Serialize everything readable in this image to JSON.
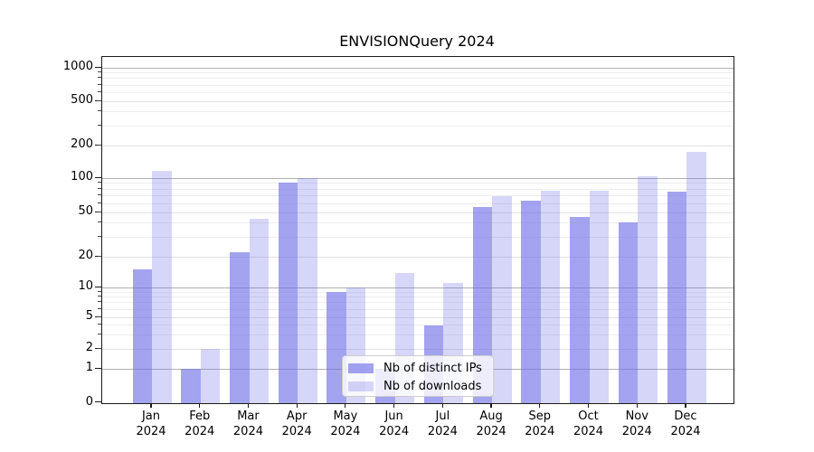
{
  "title": "ENVISIONQuery 2024",
  "year_label": "2024",
  "chart_data": {
    "type": "bar",
    "title": "ENVISIONQuery 2024",
    "categories": [
      "Jan 2024",
      "Feb 2024",
      "Mar 2024",
      "Apr 2024",
      "May 2024",
      "Jun 2024",
      "Jul 2024",
      "Aug 2024",
      "Sep 2024",
      "Oct 2024",
      "Nov 2024",
      "Dec 2024"
    ],
    "months": [
      "Jan",
      "Feb",
      "Mar",
      "Apr",
      "May",
      "Jun",
      "Jul",
      "Aug",
      "Sep",
      "Oct",
      "Nov",
      "Dec"
    ],
    "series": [
      {
        "name": "Nb of distinct IPs",
        "color": "rgba(106,106,230,0.62)",
        "values": [
          15,
          1,
          22,
          91,
          9,
          1,
          4,
          56,
          63,
          46,
          41,
          76
        ]
      },
      {
        "name": "Nb of downloads",
        "color": "rgba(106,106,230,0.28)",
        "values": [
          117,
          2,
          44,
          100,
          10,
          14,
          11,
          70,
          78,
          78,
          105,
          175
        ]
      }
    ],
    "xlabel": "",
    "ylabel": "",
    "y_axis": {
      "scale": "log-like (0 shown at baseline)",
      "tick_labels": [
        "1000",
        "500",
        "200",
        "100",
        "50",
        "20",
        "10",
        "5",
        "2",
        "1",
        "0"
      ],
      "tick_values": [
        1000,
        500,
        200,
        100,
        50,
        20,
        10,
        5,
        2,
        1,
        0
      ],
      "ylim": [
        0,
        1250
      ]
    },
    "grid": "on",
    "legend_position": "inside-bottom-center",
    "colors": {
      "major_grid": "#b2b2b2",
      "mid_grid": "#e2e2e2",
      "minor_grid": "#eeeeee",
      "axis": "#1a1a1a"
    }
  }
}
